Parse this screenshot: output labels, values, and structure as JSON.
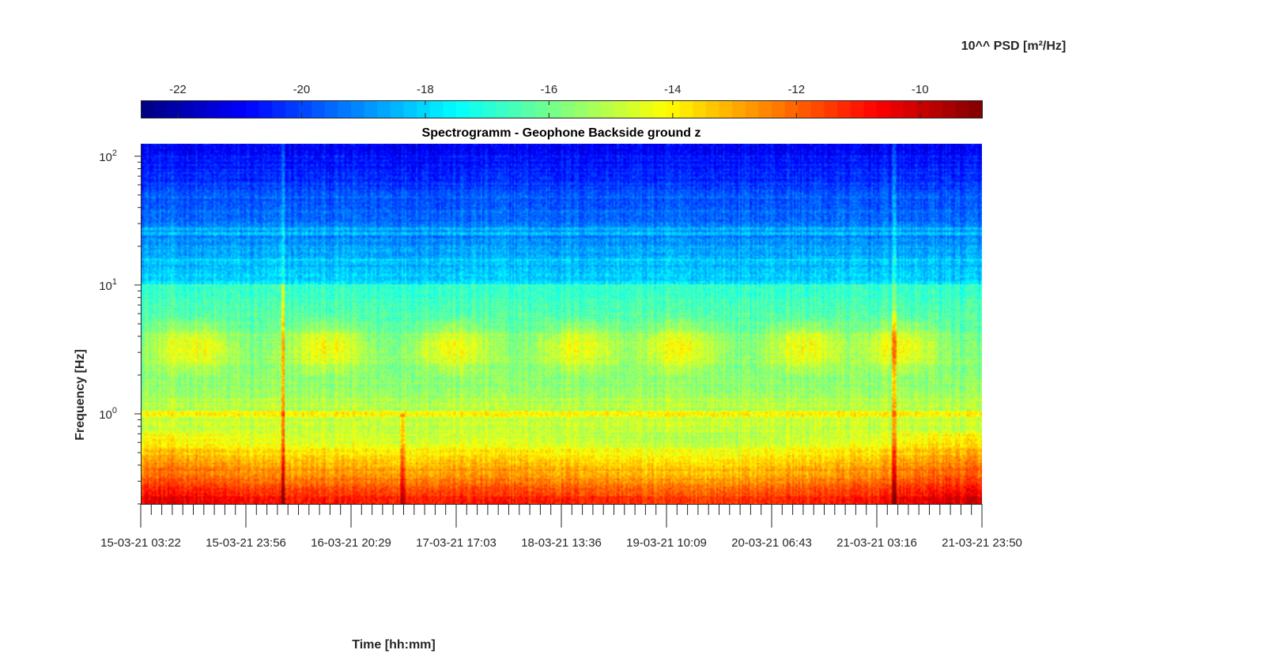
{
  "chart_data": {
    "type": "heatmap",
    "title": "Spectrogramm - Geophone Backside ground z",
    "xlabel": "Time [hh:mm]",
    "ylabel": "Frequency [Hz]",
    "x_tick_labels": [
      "15-03-21 03:22",
      "15-03-21 23:56",
      "16-03-21 20:29",
      "17-03-21 17:03",
      "18-03-21 13:36",
      "19-03-21 10:09",
      "20-03-21 06:43",
      "21-03-21 03:16",
      "21-03-21 23:50"
    ],
    "y_scale": "log",
    "y_ticks": [
      {
        "value": 1,
        "base": "10",
        "exp": "0"
      },
      {
        "value": 10,
        "base": "10",
        "exp": "1"
      },
      {
        "value": 100,
        "base": "10",
        "exp": "2"
      }
    ],
    "ylim": [
      0.2,
      125
    ],
    "colorbar": {
      "label": "10^^ PSD [m²/Hz]",
      "location": "top",
      "colormap": "jet",
      "clim": [
        -22.6,
        -9.0
      ],
      "ticks": [
        -22,
        -20,
        -18,
        -16,
        -14,
        -12,
        -10
      ],
      "tick_labels": [
        "-22",
        "-20",
        "-18",
        "-16",
        "-14",
        "-12",
        "-10"
      ]
    }
  }
}
